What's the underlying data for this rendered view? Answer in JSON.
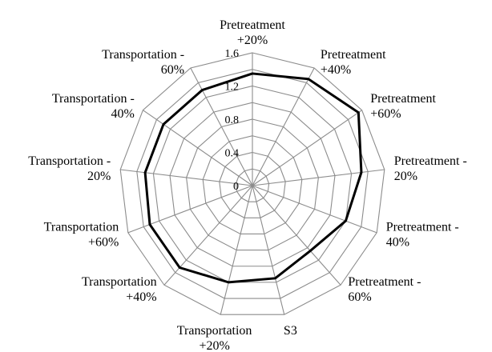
{
  "chart_data": {
    "type": "radar",
    "categories": [
      "Pretreatment\n+20%",
      "Pretreatment\n+40%",
      "Pretreatment\n+60%",
      "Pretreatment -\n20%",
      "Pretreatment -\n40%",
      "Pretreatment -\n60%",
      "S3",
      "Transportation\n+20%",
      "Transportation\n+40%",
      "Transportation\n+60%",
      "Transportation -\n20%",
      "Transportation -\n40%",
      "Transportation -\n60%"
    ],
    "series": [
      {
        "values": [
          1.35,
          1.45,
          1.55,
          1.32,
          1.2,
          1.05,
          1.15,
          1.2,
          1.32,
          1.32,
          1.3,
          1.3,
          1.3
        ]
      }
    ],
    "rlim": [
      0,
      1.6
    ],
    "ticks": [
      0,
      0.4,
      0.8,
      1.2,
      1.6
    ],
    "tick_labels": [
      "0",
      "0.4",
      "0.8",
      "1.2",
      "1.6"
    ],
    "grid_step": 0.2,
    "grid": true,
    "colors": {
      "grid": "#8c8c8c",
      "series": "#000000"
    }
  }
}
